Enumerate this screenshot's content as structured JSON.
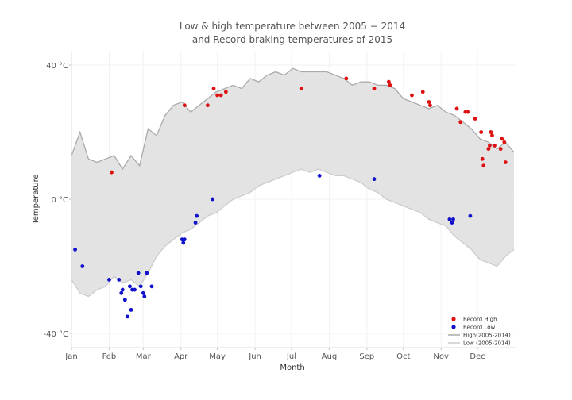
{
  "chart_data": {
    "type": "line",
    "title": "Low & high temperature between 2005 − 2014",
    "subtitle": "and Record braking temperatures of 2015",
    "xlabel": "Month",
    "ylabel": "Temperature",
    "xlim": [
      1,
      365
    ],
    "ylim": [
      -45,
      43
    ],
    "grid": true,
    "legend_position": "bottom-right",
    "x_ticks": [
      {
        "day": 1,
        "label": "Jan"
      },
      {
        "day": 32,
        "label": "Feb"
      },
      {
        "day": 60,
        "label": "Mar"
      },
      {
        "day": 91,
        "label": "Apr"
      },
      {
        "day": 121,
        "label": "May"
      },
      {
        "day": 152,
        "label": "Jun"
      },
      {
        "day": 182,
        "label": "Jul"
      },
      {
        "day": 213,
        "label": "Aug"
      },
      {
        "day": 244,
        "label": "Sep"
      },
      {
        "day": 274,
        "label": "Oct"
      },
      {
        "day": 305,
        "label": "Nov"
      },
      {
        "day": 335,
        "label": "Dec"
      }
    ],
    "y_ticks": [
      {
        "value": 40,
        "label": "40 °C"
      },
      {
        "value": 0,
        "label": "0 °C"
      },
      {
        "value": -40,
        "label": "-40 °C"
      }
    ],
    "series": [
      {
        "name": "High(2005-2014)",
        "color": "#aaaaaa",
        "x": [
          1,
          8,
          15,
          22,
          29,
          36,
          43,
          50,
          57,
          64,
          71,
          78,
          85,
          92,
          99,
          106,
          113,
          120,
          127,
          134,
          141,
          148,
          155,
          162,
          169,
          176,
          183,
          190,
          197,
          204,
          211,
          218,
          225,
          232,
          239,
          246,
          253,
          260,
          267,
          274,
          281,
          288,
          295,
          302,
          309,
          316,
          323,
          330,
          337,
          344,
          351,
          358,
          365
        ],
        "y": [
          13,
          20,
          12,
          11,
          12,
          13,
          9,
          13,
          10,
          21,
          19,
          25,
          28,
          29,
          26,
          28,
          30,
          32,
          33,
          34,
          33,
          36,
          35,
          37,
          38,
          37,
          39,
          38,
          38,
          38,
          38,
          37,
          36,
          34,
          35,
          35,
          34,
          34,
          33,
          30,
          29,
          28,
          27,
          28,
          26,
          25,
          23,
          21,
          18,
          17,
          15,
          17,
          14
        ]
      },
      {
        "name": "Low (2005-2014)",
        "color": "#cccccc",
        "x": [
          1,
          8,
          15,
          22,
          29,
          36,
          43,
          50,
          57,
          64,
          71,
          78,
          85,
          92,
          99,
          106,
          113,
          120,
          127,
          134,
          141,
          148,
          155,
          162,
          169,
          176,
          183,
          190,
          197,
          204,
          211,
          218,
          225,
          232,
          239,
          246,
          253,
          260,
          267,
          274,
          281,
          288,
          295,
          302,
          309,
          316,
          323,
          330,
          337,
          344,
          351,
          358,
          365
        ],
        "y": [
          -24,
          -28,
          -29,
          -27,
          -26,
          -23,
          -25,
          -24,
          -26,
          -22,
          -17,
          -14,
          -12,
          -10,
          -9,
          -7,
          -5,
          -4,
          -2,
          0,
          1,
          2,
          4,
          5,
          6,
          7,
          8,
          9,
          8,
          9,
          8,
          7,
          7,
          6,
          5,
          3,
          2,
          0,
          -1,
          -2,
          -3,
          -4,
          -6,
          -7,
          -8,
          -11,
          -13,
          -15,
          -18,
          -19,
          -20,
          -17,
          -15
        ]
      }
    ],
    "scatter": [
      {
        "name": "Record High",
        "color": "#dd1111",
        "x": [
          34,
          94,
          113,
          118,
          121,
          124,
          128,
          190,
          227,
          250,
          262,
          263,
          281,
          290,
          295,
          296,
          318,
          321,
          325,
          327,
          333,
          338,
          339,
          340,
          344,
          345,
          346,
          347,
          349,
          354,
          355,
          357,
          358
        ],
        "y": [
          8,
          28,
          28,
          33,
          31,
          31,
          32,
          33,
          36,
          33,
          35,
          34,
          31,
          32,
          29,
          28,
          27,
          23,
          26,
          26,
          24,
          20,
          12,
          10,
          15,
          16,
          20,
          19,
          16,
          15,
          18,
          17,
          11
        ]
      },
      {
        "name": "Record Low",
        "color": "#1111cc",
        "x": [
          4,
          10,
          32,
          40,
          42,
          43,
          45,
          47,
          49,
          50,
          51,
          53,
          56,
          58,
          60,
          61,
          63,
          67,
          92,
          93,
          94,
          103,
          104,
          117,
          205,
          250,
          312,
          314,
          315,
          329
        ],
        "y": [
          -15,
          -20,
          -24,
          -24,
          -28,
          -27,
          -30,
          -35,
          -26,
          -33,
          -27,
          -27,
          -22,
          -26,
          -28,
          -29,
          -22,
          -26,
          -12,
          -13,
          -12,
          -7,
          -5,
          0,
          7,
          6,
          -6,
          -7,
          -6,
          -5
        ]
      }
    ],
    "legend": {
      "entries": [
        {
          "label": "Record High",
          "symbol": "dot",
          "color": "#dd1111"
        },
        {
          "label": "Record Low",
          "symbol": "dot",
          "color": "#1111cc"
        },
        {
          "label": "High(2005-2014)",
          "symbol": "line",
          "color": "#aaaaaa"
        },
        {
          "label": "Low (2005-2014)",
          "symbol": "line",
          "color": "#cccccc"
        }
      ]
    },
    "fill_color": "#e3e3e3"
  }
}
